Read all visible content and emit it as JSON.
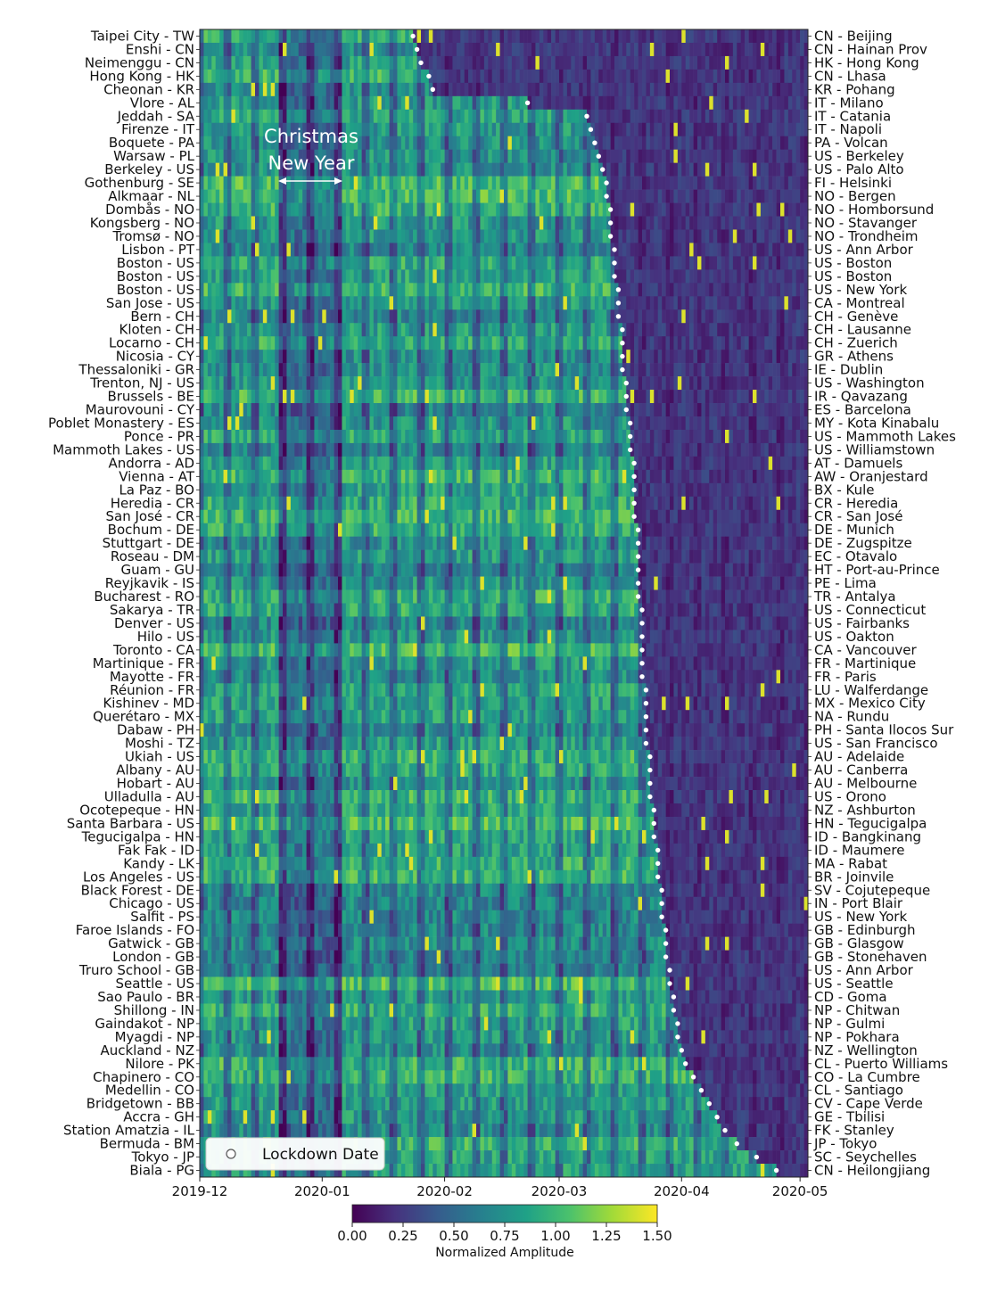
{
  "chart_data": {
    "type": "heatmap",
    "title": "",
    "xlabel": "",
    "ylabel": "",
    "x_tick_labels": [
      "2019-12",
      "2020-01",
      "2020-02",
      "2020-03",
      "2020-04",
      "2020-05"
    ],
    "x_ticks": [
      "2019-12-01",
      "2020-01-01",
      "2020-02-01",
      "2020-03-01",
      "2020-04-01",
      "2020-05-01"
    ],
    "x_range": [
      "2019-12-01",
      "2020-05-03"
    ],
    "colorbar": {
      "label": "Normalized Amplitude",
      "range": [
        0.0,
        1.5
      ],
      "tick_labels": [
        "0.00",
        "0.25",
        "0.50",
        "0.75",
        "1.00",
        "1.25",
        "1.50"
      ],
      "colormap": "viridis",
      "colors": [
        "#440154",
        "#46327e",
        "#365c8d",
        "#277f8e",
        "#1fa187",
        "#4ac16d",
        "#a0da39",
        "#fde725"
      ]
    },
    "annotations": [
      {
        "text": "Christmas",
        "date": "2019-12-25"
      },
      {
        "text": "New Year",
        "date": "2020-01-01"
      }
    ],
    "legend": {
      "label": "Lockdown Date",
      "marker": "white-circle",
      "placement": "lower-left"
    },
    "left_labels": [
      "Taipei City - TW",
      "Enshi - CN",
      "Neimenggu - CN",
      "Hong Kong - HK",
      "Cheonan - KR",
      "Vlore - AL",
      "Jeddah - SA",
      "Firenze - IT",
      "Boquete - PA",
      "Warsaw - PL",
      "Berkeley - US",
      "Gothenburg - SE",
      "Alkmaar - NL",
      "Dombås - NO",
      "Kongsberg - NO",
      "Tromsø - NO",
      "Lisbon - PT",
      "Boston - US",
      "Boston - US",
      "Boston - US",
      "San Jose - US",
      "Bern - CH",
      "Kloten - CH",
      "Locarno - CH",
      "Nicosia - CY",
      "Thessaloniki - GR",
      "Trenton, NJ - US",
      "Brussels - BE",
      "Maurovouni - CY",
      "Poblet Monastery - ES",
      "Ponce - PR",
      "Mammoth Lakes - US",
      "Andorra - AD",
      "Vienna - AT",
      "La Paz - BO",
      "Heredia - CR",
      "San José - CR",
      "Bochum - DE",
      "Stuttgart - DE",
      "Roseau - DM",
      "Guam - GU",
      "Reyjkavik - IS",
      "Bucharest - RO",
      "Sakarya - TR",
      "Denver - US",
      "Hilo - US",
      "Toronto - CA",
      "Martinique - FR",
      "Mayotte - FR",
      "Réunion - FR",
      "Kishinev - MD",
      "Querétaro - MX",
      "Dabaw - PH",
      "Moshi - TZ",
      "Ukiah - US",
      "Albany - AU",
      "Hobart - AU",
      "Ulladulla - AU",
      "Ocotepeque - HN",
      "Santa Barbara - US",
      "Tegucigalpa - HN",
      "Fak Fak - ID",
      "Kandy - LK",
      "Los Angeles - US",
      "Black Forest - DE",
      "Chicago - US",
      "Salfit - PS",
      "Faroe Islands - FO",
      "Gatwick - GB",
      "London - GB",
      "Truro School - GB",
      "Seattle  - US",
      "Sao Paulo - BR",
      "Shillong - IN",
      "Gaindakot - NP",
      "Myagdi - NP",
      "Auckland - NZ",
      "Nilore - PK",
      "Chapinero - CO",
      "Medellin - CO",
      "Bridgetown - BB",
      "Accra - GH",
      "Station Amatzia - IL",
      "Bermuda - BM",
      "Tokyo - JP",
      "Biala - PG"
    ],
    "right_labels": [
      "CN - Beijing",
      "CN - Hainan Prov",
      "HK - Hong Kong",
      "CN - Lhasa",
      "KR - Pohang",
      "IT - Milano",
      "IT - Catania",
      "IT - Napoli",
      "PA - Volcan",
      "US - Berkeley",
      "US - Palo Alto",
      "FI - Helsinki",
      "NO - Bergen",
      "NO - Homborsund",
      "NO - Stavanger",
      "NO - Trondheim",
      "US - Ann Arbor",
      "US - Boston",
      "US - Boston",
      "US - New York",
      "CA - Montreal",
      "CH - Genève",
      "CH - Lausanne",
      "CH - Zuerich",
      "GR - Athens",
      "IE - Dublin",
      "US - Washington",
      "IR - Qavazang",
      "ES - Barcelona",
      "MY - Kota Kinabalu",
      "US - Mammoth Lakes",
      "US - Williamstown",
      "AT - Damuels",
      "AW - Oranjestard",
      "BX - Kule",
      "CR - Heredia",
      "CR - San José",
      "DE - Munich",
      "DE - Zugspitze",
      "EC - Otavalo",
      "HT - Port-au-Prince",
      "PE - Lima",
      "TR - Antalya",
      "US - Connecticut",
      "US - Fairbanks",
      "US - Oakton",
      "CA - Vancouver",
      "FR - Martinique",
      "FR - Paris",
      "LU - Walferdange",
      "MX - Mexico City",
      "NA - Rundu",
      "PH - Santa Ilocos Sur",
      "US - San Francisco",
      "AU - Adelaide",
      "AU - Canberra",
      "AU - Melbourne",
      "US - Orono",
      "NZ - Ashburton",
      "HN - Tegucigalpa",
      "ID - Bangkinang",
      "ID - Maumere",
      "MA - Rabat",
      "BR - Joinvile",
      "SV - Cojutepeque",
      "IN - Port Blair",
      "US - New York",
      "GB - Edinburgh",
      "GB - Glasgow",
      "GB - Stonehaven",
      "US - Ann Arbor",
      "US - Seattle",
      "CD - Goma",
      "NP - Chitwan",
      "NP - Gulmi",
      "NP - Pokhara",
      "NZ - Wellington",
      "CL - Puerto Williams",
      "CO - La Cumbre",
      "CL - Santiago",
      "CV - Cape Verde",
      "GE - Tbilisi",
      "FK - Stanley",
      "JP - Tokyo",
      "SC - Seychelles",
      "CN - Heilongjiang"
    ],
    "lockdown_dates": [
      "2020-01-24",
      "2020-01-25",
      "2020-01-26",
      "2020-01-28",
      "2020-01-29",
      "2020-02-22",
      "2020-03-08",
      "2020-03-09",
      "2020-03-10",
      "2020-03-11",
      "2020-03-12",
      "2020-03-13",
      "2020-03-13",
      "2020-03-14",
      "2020-03-14",
      "2020-03-14",
      "2020-03-15",
      "2020-03-15",
      "2020-03-15",
      "2020-03-16",
      "2020-03-16",
      "2020-03-16",
      "2020-03-17",
      "2020-03-17",
      "2020-03-17",
      "2020-03-17",
      "2020-03-18",
      "2020-03-18",
      "2020-03-18",
      "2020-03-19",
      "2020-03-19",
      "2020-03-19",
      "2020-03-20",
      "2020-03-20",
      "2020-03-20",
      "2020-03-20",
      "2020-03-20",
      "2020-03-21",
      "2020-03-21",
      "2020-03-21",
      "2020-03-21",
      "2020-03-21",
      "2020-03-21",
      "2020-03-22",
      "2020-03-22",
      "2020-03-22",
      "2020-03-22",
      "2020-03-22",
      "2020-03-22",
      "2020-03-23",
      "2020-03-23",
      "2020-03-23",
      "2020-03-23",
      "2020-03-23",
      "2020-03-24",
      "2020-03-24",
      "2020-03-24",
      "2020-03-24",
      "2020-03-25",
      "2020-03-25",
      "2020-03-25",
      "2020-03-26",
      "2020-03-26",
      "2020-03-26",
      "2020-03-27",
      "2020-03-27",
      "2020-03-27",
      "2020-03-28",
      "2020-03-28",
      "2020-03-28",
      "2020-03-29",
      "2020-03-29",
      "2020-03-30",
      "2020-03-30",
      "2020-03-31",
      "2020-03-31",
      "2020-04-01",
      "2020-04-02",
      "2020-04-04",
      "2020-04-06",
      "2020-04-08",
      "2020-04-10",
      "2020-04-12",
      "2020-04-15",
      "2020-04-20",
      "2020-04-25"
    ]
  }
}
